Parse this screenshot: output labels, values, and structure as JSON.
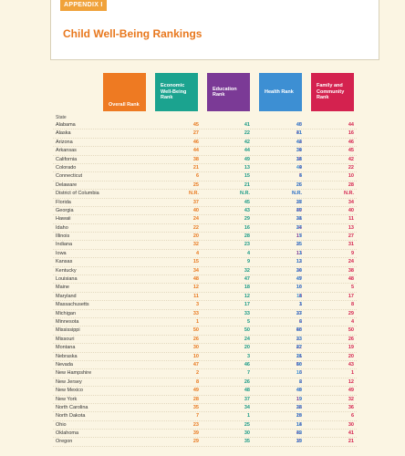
{
  "header": {
    "appendix": "APPENDIX I",
    "title": "Child Well-Being Rankings"
  },
  "columns": {
    "overall": "Overall Rank",
    "econ": [
      "Economic",
      "Well-Being",
      "Rank"
    ],
    "education": [
      "Education",
      "Rank"
    ],
    "health": "Health Rank",
    "family": [
      "Family and",
      "Community",
      "Rank"
    ]
  },
  "state_label": "State",
  "colors": {
    "overall": "#ee7a22",
    "econ": "#1ba38f",
    "education": "#7b3a96",
    "health": "#3d8fd3",
    "family": "#d4224f"
  },
  "rows": [
    [
      "Alabama",
      "45",
      "41",
      "45",
      "40",
      "44"
    ],
    [
      "Alaska",
      "27",
      "22",
      "41",
      "31",
      "16"
    ],
    [
      "Arizona",
      "46",
      "42",
      "44",
      "42",
      "46"
    ],
    [
      "Arkansas",
      "44",
      "44",
      "39",
      "34",
      "45"
    ],
    [
      "California",
      "38",
      "49",
      "38",
      "14",
      "42"
    ],
    [
      "Colorado",
      "21",
      "13",
      "9",
      "44",
      "22"
    ],
    [
      "Connecticut",
      "6",
      "15",
      "5",
      "4",
      "10"
    ],
    [
      "Delaware",
      "25",
      "21",
      "26",
      "25",
      "28"
    ],
    [
      "District of Columbia",
      "N.R.",
      "N.R.",
      "N.R.",
      "N.R.",
      "N.R."
    ],
    [
      "Florida",
      "37",
      "45",
      "27",
      "38",
      "34"
    ],
    [
      "Georgia",
      "40",
      "43",
      "40",
      "37",
      "40"
    ],
    [
      "Hawaii",
      "24",
      "29",
      "31",
      "28",
      "11"
    ],
    [
      "Idaho",
      "22",
      "16",
      "34",
      "27",
      "13"
    ],
    [
      "Illinois",
      "20",
      "28",
      "17",
      "5",
      "27"
    ],
    [
      "Indiana",
      "32",
      "23",
      "25",
      "35",
      "31"
    ],
    [
      "Iowa",
      "4",
      "4",
      "13",
      "1",
      "9"
    ],
    [
      "Kansas",
      "15",
      "9",
      "12",
      "13",
      "24"
    ],
    [
      "Kentucky",
      "34",
      "32",
      "30",
      "24",
      "38"
    ],
    [
      "Louisiana",
      "48",
      "47",
      "47",
      "49",
      "48"
    ],
    [
      "Maine",
      "12",
      "18",
      "16",
      "10",
      "5"
    ],
    [
      "Maryland",
      "11",
      "12",
      "8",
      "11",
      "17"
    ],
    [
      "Massachusetts",
      "3",
      "17",
      "1",
      "3",
      "8"
    ],
    [
      "Michigan",
      "33",
      "33",
      "37",
      "23",
      "29"
    ],
    [
      "Minnesota",
      "1",
      "5",
      "6",
      "2",
      "4"
    ],
    [
      "Mississippi",
      "50",
      "50",
      "48",
      "50",
      "50"
    ],
    [
      "Missouri",
      "26",
      "24",
      "23",
      "33",
      "26"
    ],
    [
      "Montana",
      "30",
      "20",
      "22",
      "47",
      "19"
    ],
    [
      "Nebraska",
      "10",
      "3",
      "11",
      "26",
      "20"
    ],
    [
      "Nevada",
      "47",
      "46",
      "50",
      "46",
      "43"
    ],
    [
      "New Hampshire",
      "2",
      "7",
      "3",
      "16",
      "1"
    ],
    [
      "New Jersey",
      "8",
      "26",
      "2",
      "6",
      "12"
    ],
    [
      "New Mexico",
      "49",
      "48",
      "49",
      "48",
      "49"
    ],
    [
      "New York",
      "28",
      "37",
      "19",
      "9",
      "32"
    ],
    [
      "North Carolina",
      "35",
      "34",
      "28",
      "32",
      "36"
    ],
    [
      "North Dakota",
      "7",
      "1",
      "18",
      "29",
      "6"
    ],
    [
      "Ohio",
      "23",
      "25",
      "14",
      "18",
      "30"
    ],
    [
      "Oklahoma",
      "39",
      "30",
      "42",
      "39",
      "41"
    ],
    [
      "Oregon",
      "29",
      "35",
      "35",
      "19",
      "21"
    ]
  ]
}
